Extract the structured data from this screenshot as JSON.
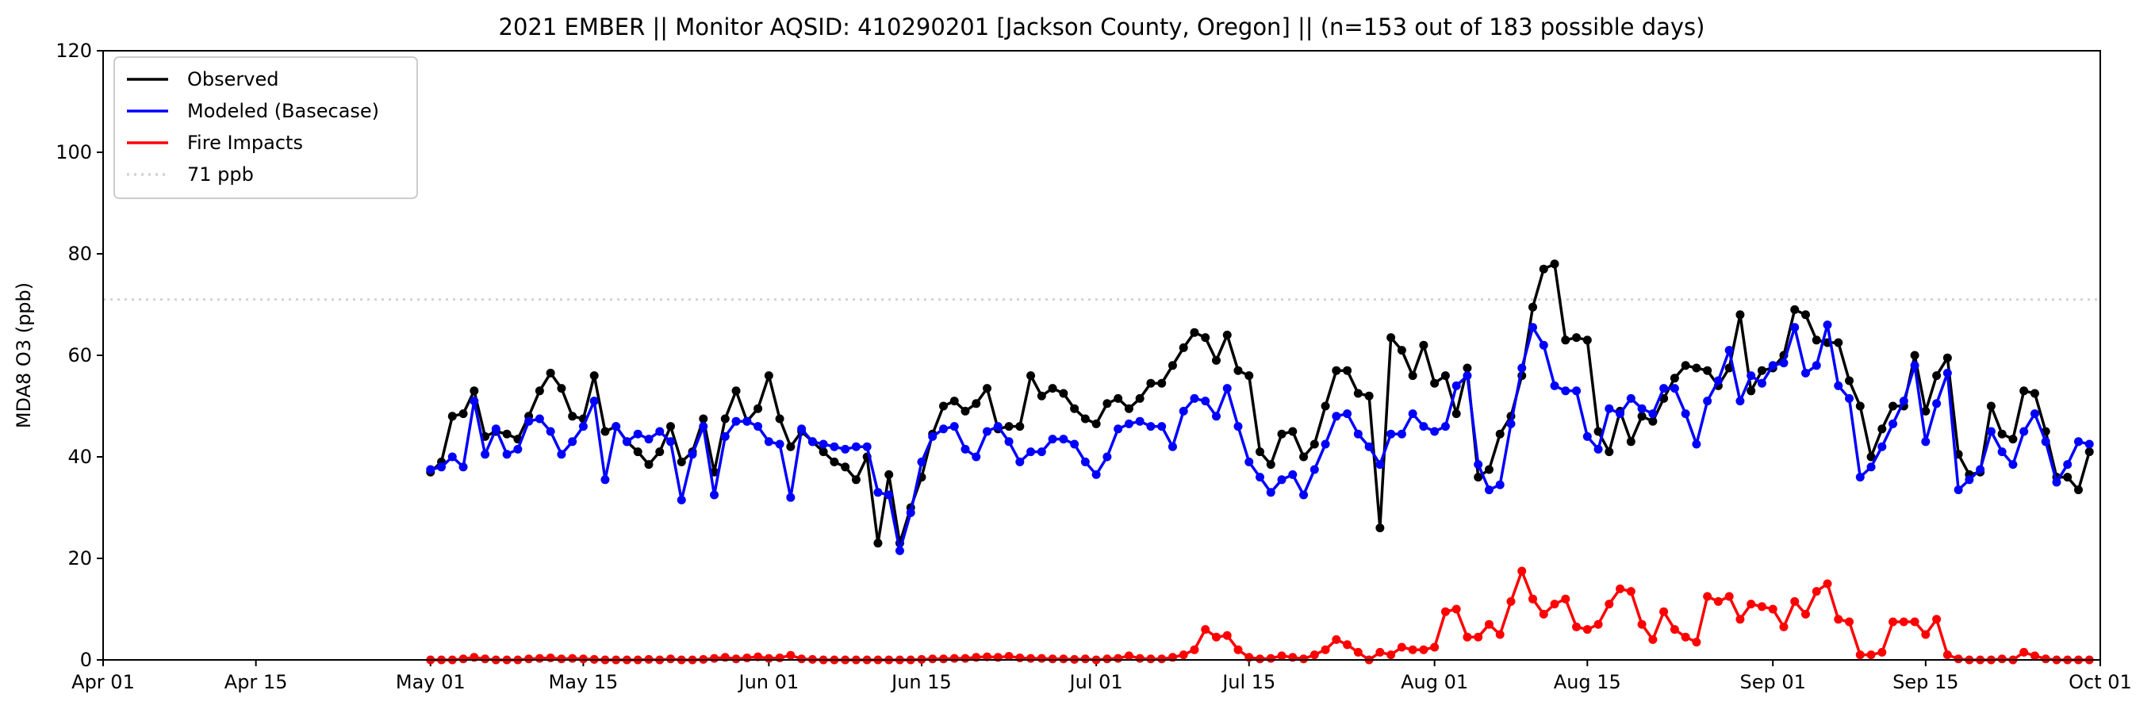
{
  "chart_data": {
    "type": "line",
    "title": "2021 EMBER || Monitor AQSID: 410290201 [Jackson County, Oregon] || (n=153 out of 183 possible days)",
    "xlabel": "",
    "ylabel": "MDA8 O3 (ppb)",
    "ylim": [
      0,
      120
    ],
    "yticks": [
      0,
      20,
      40,
      60,
      80,
      100,
      120
    ],
    "xlim_days_since_apr01": [
      0,
      183
    ],
    "xticks": [
      {
        "label": "Apr 01",
        "day": 0
      },
      {
        "label": "Apr 15",
        "day": 14
      },
      {
        "label": "May 01",
        "day": 30
      },
      {
        "label": "May 15",
        "day": 44
      },
      {
        "label": "Jun 01",
        "day": 61
      },
      {
        "label": "Jun 15",
        "day": 75
      },
      {
        "label": "Jul 01",
        "day": 91
      },
      {
        "label": "Jul 15",
        "day": 105
      },
      {
        "label": "Aug 01",
        "day": 122
      },
      {
        "label": "Aug 15",
        "day": 136
      },
      {
        "label": "Sep 01",
        "day": 153
      },
      {
        "label": "Sep 15",
        "day": 167
      },
      {
        "label": "Oct 01",
        "day": 183
      }
    ],
    "series_start_day": 30,
    "legend_position": "top-left",
    "threshold": {
      "label": "71 ppb",
      "value": 71,
      "color": "#d3d3d3"
    },
    "series": [
      {
        "name": "Observed",
        "color": "#000000",
        "values": [
          37,
          39,
          48,
          48.5,
          53,
          44,
          45,
          44.5,
          43.5,
          48,
          53,
          56.5,
          53.5,
          48,
          47.5,
          56,
          45,
          46,
          43,
          41,
          38.5,
          41,
          46,
          39,
          41,
          47.5,
          37,
          47.5,
          53,
          47,
          49.5,
          56,
          47.5,
          42,
          45,
          43,
          41,
          39,
          38,
          35.5,
          40,
          23,
          36.5,
          23,
          30,
          36,
          44.5,
          50,
          51,
          49,
          50.5,
          53.5,
          45.5,
          46,
          46,
          56,
          52,
          53.5,
          52.5,
          49.5,
          47.5,
          46.5,
          50.5,
          51.5,
          49.5,
          51.5,
          54.5,
          54.5,
          58,
          61.5,
          64.5,
          63.5,
          59,
          64,
          57,
          56,
          41,
          38.5,
          44.5,
          45,
          40,
          42.5,
          50,
          57,
          57,
          52.5,
          52,
          26,
          63.5,
          61,
          56,
          62,
          54.5,
          56,
          48.5,
          57.5,
          36,
          37.5,
          44.5,
          48,
          56,
          69.5,
          77,
          78,
          63,
          63.5,
          63,
          45,
          41,
          49,
          43,
          48,
          47,
          51.5,
          55.5,
          58,
          57.5,
          57,
          54,
          57.5,
          68,
          53,
          57,
          57.5,
          60,
          69,
          68,
          63,
          62.5,
          62.5,
          55,
          50,
          40,
          45.5,
          50,
          50,
          60,
          49,
          56,
          59.5,
          40.5,
          36.5,
          37,
          50,
          44.5,
          43.5,
          53,
          52.5,
          45,
          36,
          36,
          33.5,
          41
        ]
      },
      {
        "name": "Modeled (Basecase)",
        "color": "#0000ff",
        "values": [
          37.5,
          38,
          40,
          38,
          51,
          40.5,
          45.5,
          40.5,
          41.5,
          47,
          47.5,
          45,
          40.5,
          43,
          46,
          51,
          35.5,
          46,
          43,
          44.5,
          43.5,
          45,
          43,
          31.5,
          40.5,
          46,
          32.5,
          44,
          47,
          47,
          46,
          43,
          42.5,
          32,
          45.5,
          43,
          42.5,
          42,
          41.5,
          42,
          42,
          33,
          32.5,
          21.5,
          29,
          39,
          44,
          45.5,
          46,
          41.5,
          40,
          45,
          46,
          43,
          39,
          41,
          41,
          43.5,
          43.5,
          42.5,
          39,
          36.5,
          40,
          45.5,
          46.5,
          47,
          46,
          46,
          42,
          49,
          51.5,
          51,
          48,
          53.5,
          46,
          39,
          36,
          33,
          35.5,
          36.5,
          32.5,
          37.5,
          42.5,
          48,
          48.5,
          44.5,
          42,
          38.5,
          44.5,
          44.5,
          48.5,
          46,
          45,
          46,
          54,
          56,
          38.5,
          33.5,
          34.5,
          46.5,
          57.5,
          65.5,
          62,
          54,
          53,
          53,
          44,
          41.5,
          49.5,
          48.5,
          51.5,
          49.5,
          48.5,
          53.5,
          53.5,
          48.5,
          42.5,
          51,
          55,
          61,
          51,
          56,
          54.5,
          58,
          58.5,
          65.5,
          56.5,
          58,
          66,
          54,
          51.5,
          36,
          38,
          42,
          46.5,
          51,
          58,
          43,
          50.5,
          56.5,
          33.5,
          35.5,
          37.5,
          45,
          41,
          38.5,
          45,
          48.5,
          43,
          35,
          38.5,
          43,
          42.5
        ]
      },
      {
        "name": "Fire Impacts",
        "color": "#ff0000",
        "values": [
          0,
          0,
          0,
          0.2,
          0.5,
          0.2,
          0,
          0,
          0,
          0.2,
          0.3,
          0.4,
          0.2,
          0.3,
          0.2,
          0.1,
          0,
          0,
          0,
          0,
          0.1,
          0,
          0.2,
          0,
          0,
          0.1,
          0.3,
          0.5,
          0.2,
          0.4,
          0.6,
          0.3,
          0.4,
          0.9,
          0.2,
          0.1,
          0,
          0,
          0,
          0,
          0,
          0,
          0,
          0,
          0,
          0.1,
          0.2,
          0.2,
          0.3,
          0.3,
          0.5,
          0.6,
          0.5,
          0.7,
          0.4,
          0.3,
          0.3,
          0.2,
          0.2,
          0.1,
          0.2,
          0,
          0.2,
          0.3,
          0.8,
          0.3,
          0.2,
          0.2,
          0.5,
          1,
          2,
          6,
          4.5,
          4.8,
          2,
          0.5,
          0.2,
          0.3,
          0.8,
          0.5,
          0.2,
          1,
          2,
          4,
          3,
          1.5,
          0,
          1.5,
          1,
          2.5,
          2,
          2,
          2.5,
          9.5,
          10,
          4.5,
          4.5,
          7,
          5,
          11.5,
          17.5,
          12,
          9,
          11,
          12,
          6.5,
          6,
          7,
          11,
          14,
          13.5,
          7,
          4,
          9.5,
          6,
          4.5,
          3.5,
          12.5,
          11.5,
          12.5,
          8,
          11,
          10.5,
          10,
          6.5,
          11.5,
          9,
          13.5,
          15,
          8,
          7.5,
          1,
          1,
          1.5,
          7.5,
          7.5,
          7.5,
          5,
          8,
          1,
          0.2,
          0,
          0,
          0,
          0.2,
          0,
          1.5,
          0.8,
          0.2,
          0,
          0,
          0,
          0
        ]
      }
    ]
  }
}
